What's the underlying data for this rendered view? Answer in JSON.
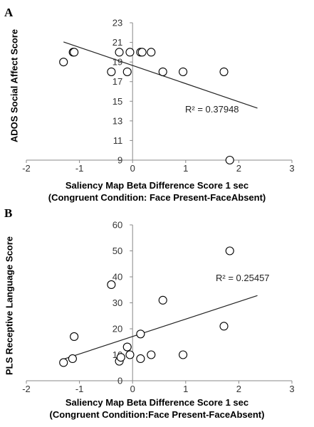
{
  "chart_data": [
    {
      "type": "scatter",
      "panel_label": "A",
      "xlabel_line1": "Saliency Map Beta Difference Score 1 sec",
      "xlabel_line2": "(Congruent Condition: Face Present-FaceAbsent)",
      "ylabel": "ADOS Social Affect Score",
      "xlim": [
        -2,
        3
      ],
      "ylim": [
        9,
        23
      ],
      "x_ticks": [
        "-2",
        "-1",
        "0",
        "1",
        "2",
        "3"
      ],
      "y_ticks": [
        "9",
        "11",
        "13",
        "15",
        "17",
        "19",
        "21",
        "23"
      ],
      "points": [
        {
          "x": -1.3,
          "y": 19
        },
        {
          "x": -1.12,
          "y": 20
        },
        {
          "x": -1.1,
          "y": 20
        },
        {
          "x": -0.4,
          "y": 18
        },
        {
          "x": -0.25,
          "y": 20
        },
        {
          "x": -0.1,
          "y": 18
        },
        {
          "x": -0.05,
          "y": 20
        },
        {
          "x": 0.15,
          "y": 20
        },
        {
          "x": 0.18,
          "y": 20
        },
        {
          "x": 0.35,
          "y": 20
        },
        {
          "x": 0.57,
          "y": 18
        },
        {
          "x": 0.95,
          "y": 18
        },
        {
          "x": 1.72,
          "y": 18
        },
        {
          "x": 1.83,
          "y": 9
        }
      ],
      "trendline": {
        "x": [
          -1.3,
          2.35
        ],
        "y": [
          21.05,
          14.3
        ]
      },
      "annotation": "R² = 0.37948",
      "grid": false
    },
    {
      "type": "scatter",
      "panel_label": "B",
      "xlabel_line1": "Saliency Map Beta Difference Score 1 sec",
      "xlabel_line2": "(Congruent Condition:Face Present-FaceAbsent)",
      "ylabel": "PLS Receptive Language Score",
      "xlim": [
        -2,
        3
      ],
      "ylim": [
        0,
        60
      ],
      "x_ticks": [
        "-2",
        "-1",
        "0",
        "1",
        "2",
        "3"
      ],
      "y_ticks": [
        "0",
        "10",
        "20",
        "30",
        "40",
        "50",
        "60"
      ],
      "points": [
        {
          "x": -1.3,
          "y": 7
        },
        {
          "x": -1.13,
          "y": 8.5
        },
        {
          "x": -1.1,
          "y": 17
        },
        {
          "x": -0.4,
          "y": 37
        },
        {
          "x": -0.25,
          "y": 7.5
        },
        {
          "x": -0.22,
          "y": 9
        },
        {
          "x": -0.1,
          "y": 13
        },
        {
          "x": -0.05,
          "y": 10
        },
        {
          "x": 0.15,
          "y": 18
        },
        {
          "x": 0.15,
          "y": 8.5
        },
        {
          "x": 0.35,
          "y": 10
        },
        {
          "x": 0.57,
          "y": 31
        },
        {
          "x": 0.95,
          "y": 10
        },
        {
          "x": 1.72,
          "y": 21
        },
        {
          "x": 1.83,
          "y": 50
        }
      ],
      "trendline": {
        "x": [
          -1.3,
          2.35
        ],
        "y": [
          8.3,
          32.8
        ]
      },
      "annotation": "R² = 0.25457",
      "grid": false
    }
  ]
}
